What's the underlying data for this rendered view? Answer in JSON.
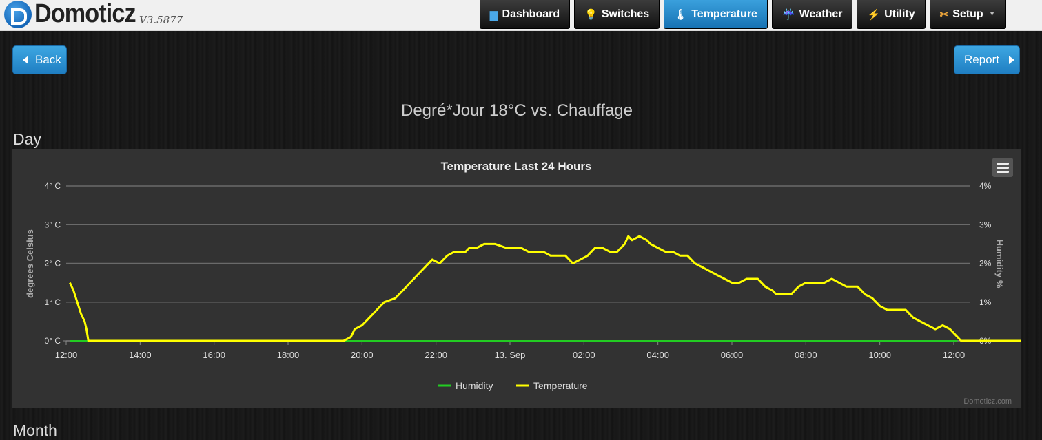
{
  "app": {
    "name": "Domoticz",
    "version": "V3.5877"
  },
  "nav": [
    {
      "label": "Dashboard",
      "icon": "monitor-icon",
      "glyph": "▆"
    },
    {
      "label": "Switches",
      "icon": "lightbulb-icon",
      "glyph": "💡"
    },
    {
      "label": "Temperature",
      "icon": "thermometer-icon",
      "glyph": "🌡"
    },
    {
      "label": "Weather",
      "icon": "rain-cloud-icon",
      "glyph": "☔"
    },
    {
      "label": "Utility",
      "icon": "utility-icon",
      "glyph": "⚡"
    },
    {
      "label": "Setup",
      "icon": "tools-icon",
      "glyph": "✂"
    }
  ],
  "buttons": {
    "back": "Back",
    "report": "Report"
  },
  "page": {
    "title": "Degré*Jour 18°C vs. Chauffage",
    "section_day": "Day",
    "section_month": "Month"
  },
  "colors": {
    "temperature": "#ffff00",
    "humidity": "#22cc22",
    "active_nav": "#2489c9"
  },
  "chart_data": {
    "type": "line",
    "title": "Temperature Last 24 Hours",
    "ylabel": "degrees Celsius",
    "ylabel_right": "Humidity %",
    "credit": "Domoticz.com",
    "ylim": [
      0,
      4
    ],
    "yticks": [
      "0° C",
      "1° C",
      "2° C",
      "3° C",
      "4° C"
    ],
    "yticks_right": [
      "0%",
      "1%",
      "2%",
      "3%",
      "4%"
    ],
    "x_ticks": [
      "12:00",
      "14:00",
      "16:00",
      "18:00",
      "20:00",
      "22:00",
      "13. Sep",
      "02:00",
      "04:00",
      "06:00",
      "08:00",
      "10:00",
      "12:00"
    ],
    "x_hours_range": [
      12,
      36
    ],
    "legend_position": "bottom-center",
    "grid": true,
    "series": [
      {
        "name": "Humidity",
        "points": [
          [
            12.1,
            0
          ],
          [
            36.1,
            0
          ]
        ]
      },
      {
        "name": "Temperature",
        "points": [
          [
            12.1,
            1.5
          ],
          [
            12.2,
            1.3
          ],
          [
            12.3,
            1.0
          ],
          [
            12.4,
            0.7
          ],
          [
            12.5,
            0.5
          ],
          [
            12.55,
            0.3
          ],
          [
            12.6,
            0.0
          ],
          [
            19.5,
            0.0
          ],
          [
            19.7,
            0.1
          ],
          [
            19.8,
            0.3
          ],
          [
            20.0,
            0.4
          ],
          [
            20.2,
            0.6
          ],
          [
            20.4,
            0.8
          ],
          [
            20.6,
            1.0
          ],
          [
            20.9,
            1.1
          ],
          [
            21.1,
            1.3
          ],
          [
            21.3,
            1.5
          ],
          [
            21.5,
            1.7
          ],
          [
            21.7,
            1.9
          ],
          [
            21.9,
            2.1
          ],
          [
            22.1,
            2.0
          ],
          [
            22.3,
            2.2
          ],
          [
            22.5,
            2.3
          ],
          [
            22.8,
            2.3
          ],
          [
            22.9,
            2.4
          ],
          [
            23.1,
            2.4
          ],
          [
            23.3,
            2.5
          ],
          [
            23.6,
            2.5
          ],
          [
            23.9,
            2.4
          ],
          [
            24.3,
            2.4
          ],
          [
            24.5,
            2.3
          ],
          [
            24.9,
            2.3
          ],
          [
            25.1,
            2.2
          ],
          [
            25.5,
            2.2
          ],
          [
            25.7,
            2.0
          ],
          [
            25.9,
            2.1
          ],
          [
            26.1,
            2.2
          ],
          [
            26.3,
            2.4
          ],
          [
            26.5,
            2.4
          ],
          [
            26.7,
            2.3
          ],
          [
            26.9,
            2.3
          ],
          [
            27.1,
            2.5
          ],
          [
            27.2,
            2.7
          ],
          [
            27.3,
            2.6
          ],
          [
            27.5,
            2.7
          ],
          [
            27.7,
            2.6
          ],
          [
            27.8,
            2.5
          ],
          [
            28.0,
            2.4
          ],
          [
            28.2,
            2.3
          ],
          [
            28.4,
            2.3
          ],
          [
            28.6,
            2.2
          ],
          [
            28.8,
            2.2
          ],
          [
            29.0,
            2.0
          ],
          [
            29.2,
            1.9
          ],
          [
            29.4,
            1.8
          ],
          [
            29.6,
            1.7
          ],
          [
            29.8,
            1.6
          ],
          [
            30.0,
            1.5
          ],
          [
            30.2,
            1.5
          ],
          [
            30.4,
            1.6
          ],
          [
            30.7,
            1.6
          ],
          [
            30.9,
            1.4
          ],
          [
            31.1,
            1.3
          ],
          [
            31.2,
            1.2
          ],
          [
            31.6,
            1.2
          ],
          [
            31.8,
            1.4
          ],
          [
            32.0,
            1.5
          ],
          [
            32.5,
            1.5
          ],
          [
            32.7,
            1.6
          ],
          [
            32.9,
            1.5
          ],
          [
            33.1,
            1.4
          ],
          [
            33.4,
            1.4
          ],
          [
            33.6,
            1.2
          ],
          [
            33.8,
            1.1
          ],
          [
            34.0,
            0.9
          ],
          [
            34.2,
            0.8
          ],
          [
            34.7,
            0.8
          ],
          [
            34.9,
            0.6
          ],
          [
            35.1,
            0.5
          ],
          [
            35.3,
            0.4
          ],
          [
            35.5,
            0.3
          ],
          [
            35.7,
            0.4
          ],
          [
            35.9,
            0.3
          ],
          [
            36.0,
            0.2
          ],
          [
            36.2,
            0.0
          ],
          [
            38.1,
            0.0
          ]
        ]
      }
    ]
  }
}
